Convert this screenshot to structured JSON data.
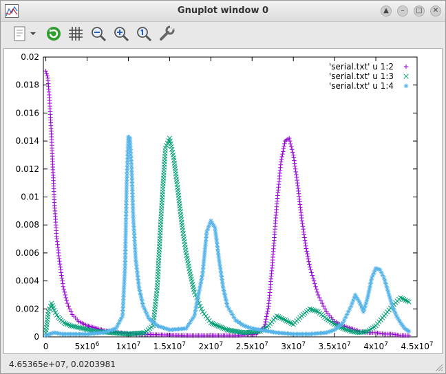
{
  "window": {
    "title": "Gnuplot window 0"
  },
  "toolbar": {
    "buttons": [
      "export-icon",
      "replot-icon",
      "grid-icon",
      "zoom-out-icon",
      "zoom-in-icon",
      "zoom-fit-icon",
      "settings-icon"
    ]
  },
  "status": {
    "coords": "4.65365e+07,  0.0203981"
  },
  "colors": {
    "s1": "#9400d3",
    "s2": "#009e73",
    "s3": "#56b4e9"
  },
  "chart_data": {
    "type": "scatter",
    "title": "",
    "xlabel": "",
    "ylabel": "",
    "xlim": [
      -300000,
      45000000
    ],
    "ylim": [
      0,
      0.02
    ],
    "grid": false,
    "legend_position": "top-right",
    "y_ticks": [
      "0",
      "0.002",
      "0.004",
      "0.006",
      "0.008",
      "0.01",
      "0.012",
      "0.014",
      "0.016",
      "0.018",
      "0.02"
    ],
    "x_ticks": [
      {
        "mant": "0",
        "exp": ""
      },
      {
        "mant": "5x10",
        "exp": "6"
      },
      {
        "mant": "1x10",
        "exp": "7"
      },
      {
        "mant": "1.5x10",
        "exp": "7"
      },
      {
        "mant": "2x10",
        "exp": "7"
      },
      {
        "mant": "2.5x10",
        "exp": "7"
      },
      {
        "mant": "3x10",
        "exp": "7"
      },
      {
        "mant": "3.5x10",
        "exp": "7"
      },
      {
        "mant": "4x10",
        "exp": "7"
      },
      {
        "mant": "4.5x10",
        "exp": "7"
      }
    ],
    "series": [
      {
        "name": "'serial.txt' u 1:2",
        "marker": "+",
        "x": [
          0,
          250000,
          500000,
          750000,
          1000000,
          1300000,
          1700000,
          2100000,
          2600000,
          3200000,
          4000000,
          5000000,
          6200000,
          7500000,
          9000000,
          11000000,
          14000000,
          17000000,
          20000000,
          23000000,
          25500000,
          26500000,
          27000000,
          27500000,
          28000000,
          28500000,
          29000000,
          29500000,
          30000000,
          30500000,
          31000000,
          31500000,
          32000000,
          33000000,
          34000000,
          35000000,
          36000000,
          37000000,
          38000000,
          39000000,
          40000000,
          41000000,
          42000000,
          43000000,
          44000000
        ],
        "y": [
          0.019,
          0.0185,
          0.0165,
          0.0135,
          0.01,
          0.0072,
          0.0052,
          0.0036,
          0.0024,
          0.0016,
          0.0011,
          0.0008,
          0.0006,
          0.0004,
          0.0003,
          0.0002,
          0.00015,
          0.0001,
          0.0001,
          0.0001,
          0.0002,
          0.0007,
          0.0022,
          0.0055,
          0.0095,
          0.0125,
          0.014,
          0.0142,
          0.013,
          0.011,
          0.0085,
          0.0065,
          0.005,
          0.003,
          0.0018,
          0.0011,
          0.0008,
          0.0006,
          0.0004,
          0.0003,
          0.0003,
          0.0002,
          0.0002,
          0.0001,
          0.0001
        ]
      },
      {
        "name": "'serial.txt' u 1:3",
        "marker": "x",
        "x": [
          0,
          300000,
          700000,
          1000000,
          1500000,
          2200000,
          3000000,
          4500000,
          6000000,
          8000000,
          10000000,
          12000000,
          13000000,
          13500000,
          14000000,
          14500000,
          15000000,
          15500000,
          16000000,
          16500000,
          17000000,
          17500000,
          18000000,
          19000000,
          20000000,
          22000000,
          24000000,
          26000000,
          27000000,
          28000000,
          29000000,
          30000000,
          31000000,
          32000000,
          33000000,
          34000000,
          35000000,
          36000000,
          37000000,
          38000000,
          39000000,
          40000000,
          41000000,
          42000000,
          43000000,
          44000000
        ],
        "y": [
          0.0003,
          0.0018,
          0.0024,
          0.0019,
          0.0014,
          0.001,
          0.0008,
          0.0006,
          0.0004,
          0.0003,
          0.0002,
          0.0003,
          0.0008,
          0.0035,
          0.009,
          0.0135,
          0.0142,
          0.0128,
          0.0105,
          0.008,
          0.006,
          0.0045,
          0.0032,
          0.0018,
          0.001,
          0.0005,
          0.0003,
          0.0004,
          0.0008,
          0.0015,
          0.0012,
          0.0009,
          0.0015,
          0.002,
          0.0018,
          0.0013,
          0.0009,
          0.0006,
          0.0004,
          0.0003,
          0.0004,
          0.0008,
          0.0015,
          0.0022,
          0.0028,
          0.0025
        ]
      },
      {
        "name": "'serial.txt' u 1:4",
        "marker": "*",
        "x": [
          0,
          1000000,
          2000000,
          3000000,
          5000000,
          7000000,
          8500000,
          9300000,
          9600000,
          9800000,
          10000000,
          10200000,
          10400000,
          10600000,
          10900000,
          11300000,
          11800000,
          12500000,
          13500000,
          15000000,
          17000000,
          18000000,
          19000000,
          19500000,
          20000000,
          20500000,
          21000000,
          21500000,
          22000000,
          23000000,
          24000000,
          25000000,
          26000000,
          27000000,
          28000000,
          30000000,
          32000000,
          34000000,
          35000000,
          36000000,
          37000000,
          37500000,
          38000000,
          38500000,
          39000000,
          39500000,
          40000000,
          40500000,
          41000000,
          41500000,
          42000000,
          42500000,
          43000000,
          43500000,
          44000000
        ],
        "y": [
          0.0001,
          0.0003,
          0.0002,
          0.0002,
          0.0002,
          0.0003,
          0.0006,
          0.0015,
          0.005,
          0.011,
          0.0143,
          0.0142,
          0.012,
          0.0085,
          0.0055,
          0.0035,
          0.0022,
          0.0013,
          0.0008,
          0.0005,
          0.0006,
          0.0015,
          0.0045,
          0.0075,
          0.0083,
          0.0078,
          0.0055,
          0.0035,
          0.0022,
          0.0012,
          0.0008,
          0.0006,
          0.0005,
          0.0004,
          0.0003,
          0.0002,
          0.0002,
          0.0003,
          0.0005,
          0.001,
          0.0022,
          0.003,
          0.0025,
          0.0018,
          0.0028,
          0.0042,
          0.0049,
          0.0048,
          0.0042,
          0.0032,
          0.0022,
          0.0015,
          0.001,
          0.0006,
          0.0004
        ]
      }
    ]
  }
}
